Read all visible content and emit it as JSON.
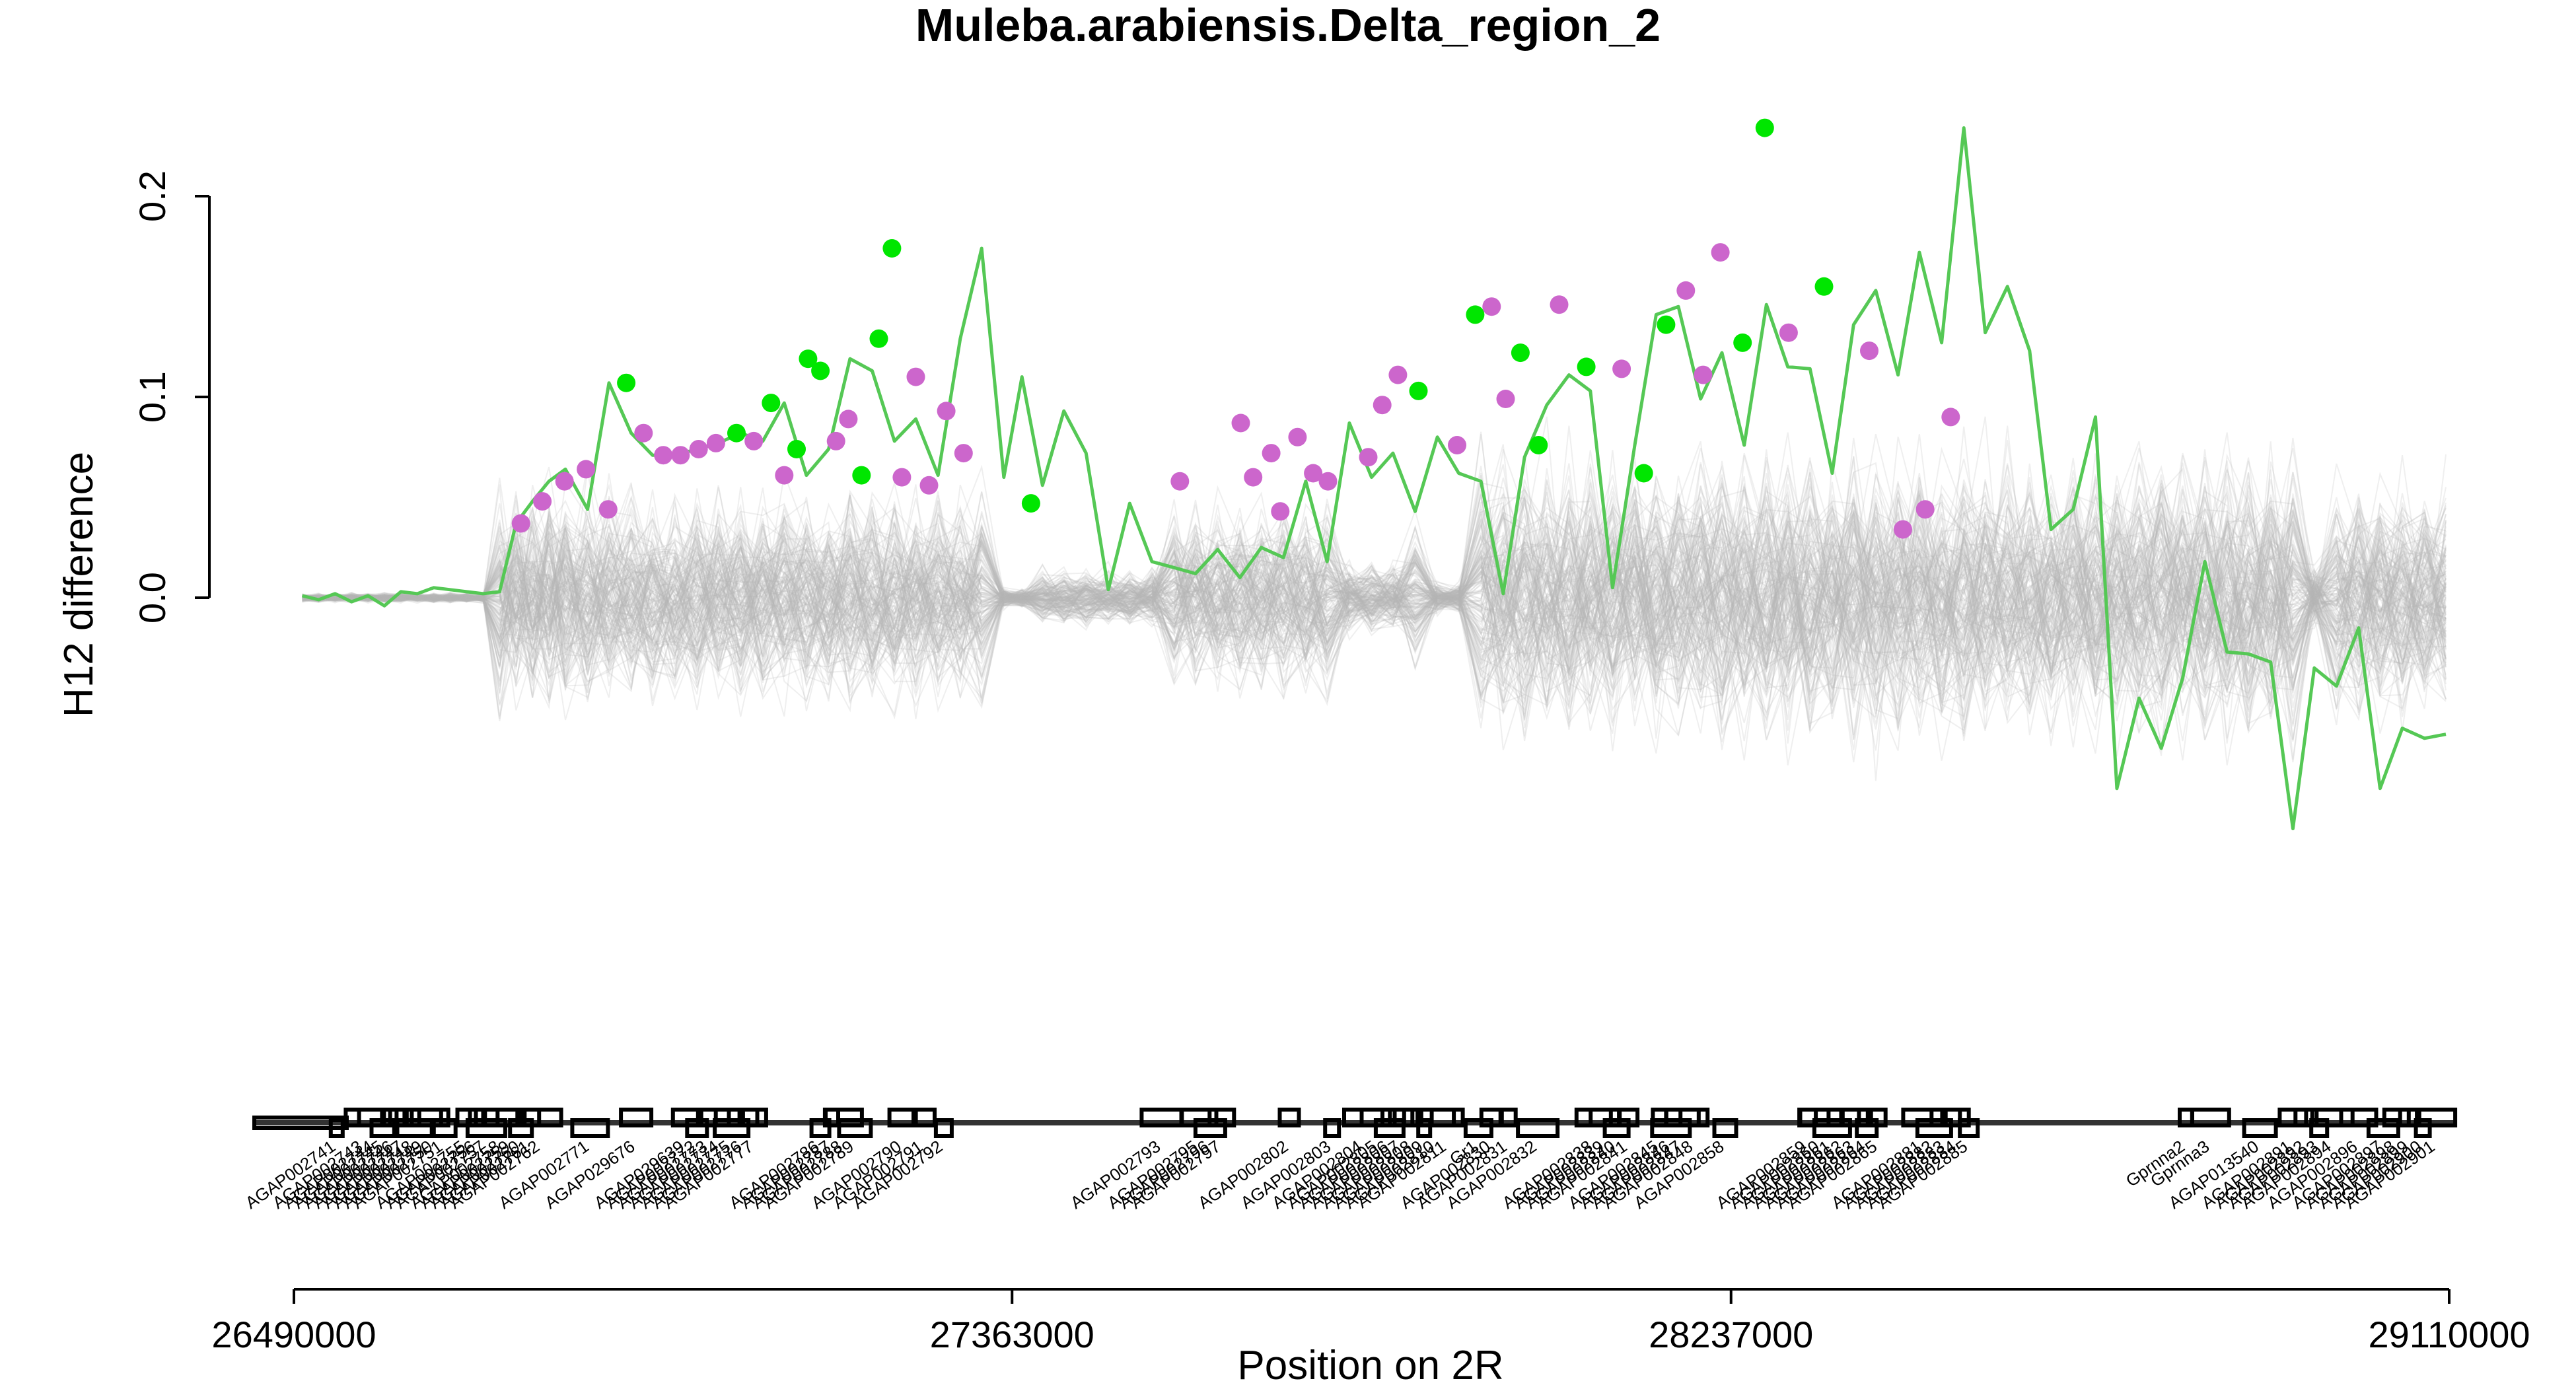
{
  "chart_data": {
    "type": "line",
    "title": "Muleba.arabiensis.Delta_region_2",
    "xlabel": "Position on 2R",
    "ylabel": "H12 difference",
    "xlim": [
      26490000,
      29110000
    ],
    "ylim": [
      -0.2,
      0.24
    ],
    "x_ticks": [
      "26490000",
      "27363000",
      "28237000",
      "29110000"
    ],
    "y_ticks": [
      "0.0",
      "0.1",
      "0.2"
    ],
    "grid": false,
    "legend": "none",
    "colors": {
      "observed_line": "#55c855",
      "significant_point": "#00e600",
      "secondary_point": "#cc66cc",
      "permutations": "#b4b4b4",
      "genes": "#000000"
    },
    "series": [
      {
        "role": "observed",
        "x": [
          26500000,
          26520000,
          26540000,
          26560000,
          26580000,
          26600000,
          26620000,
          26640000,
          26660000,
          26680000,
          26700000,
          26720000,
          26740000,
          26760000,
          26780000,
          26800000,
          26820000,
          26847000,
          26873000,
          26900000,
          26926000,
          26953000,
          26980000,
          27006000,
          27033000,
          27060000,
          27086000,
          27113000,
          27140000,
          27166000,
          27193000,
          27220000,
          27246000,
          27273000,
          27300000,
          27326000,
          27353000,
          27375000,
          27400000,
          27426000,
          27453000,
          27480000,
          27506000,
          27533000,
          27560000,
          27586000,
          27613000,
          27640000,
          27666000,
          27693000,
          27720000,
          27746000,
          27773000,
          27800000,
          27826000,
          27853000,
          27880000,
          27906000,
          27933000,
          27960000,
          27986000,
          28013000,
          28040000,
          28066000,
          28093000,
          28120000,
          28146000,
          28173000,
          28200000,
          28226000,
          28253000,
          28280000,
          28306000,
          28333000,
          28360000,
          28386000,
          28413000,
          28440000,
          28466000,
          28493000,
          28520000,
          28546000,
          28573000,
          28600000,
          28626000,
          28653000,
          28680000,
          28706000,
          28733000,
          28760000,
          28786000,
          28813000,
          28840000,
          28866000,
          28893000,
          28920000,
          28946000,
          28973000,
          29000000,
          29026000,
          29053000,
          29080000,
          29106000
        ],
        "y": [
          0.001,
          -0.001,
          0.002,
          -0.002,
          0.001,
          -0.004,
          0.003,
          0.002,
          0.005,
          0.004,
          0.003,
          0.002,
          0.003,
          0.037,
          0.048,
          0.058,
          0.064,
          0.044,
          0.107,
          0.082,
          0.071,
          0.071,
          0.074,
          0.077,
          0.082,
          0.078,
          0.097,
          0.061,
          0.074,
          0.119,
          0.113,
          0.078,
          0.089,
          0.061,
          0.129,
          0.174,
          0.06,
          0.11,
          0.056,
          0.093,
          0.072,
          0.004,
          0.047,
          0.018,
          0.015,
          0.012,
          0.024,
          0.01,
          0.025,
          0.02,
          0.058,
          0.018,
          0.087,
          0.06,
          0.072,
          0.043,
          0.08,
          0.062,
          0.058,
          0.002,
          0.07,
          0.096,
          0.111,
          0.103,
          0.005,
          0.076,
          0.141,
          0.145,
          0.099,
          0.122,
          0.076,
          0.146,
          0.115,
          0.114,
          0.062,
          0.136,
          0.153,
          0.111,
          0.172,
          0.127,
          0.234,
          0.132,
          0.155,
          0.123,
          0.034,
          0.044,
          0.09,
          -0.095,
          -0.05,
          -0.075,
          -0.04,
          0.018,
          -0.027,
          -0.028,
          -0.032,
          -0.115,
          -0.035,
          -0.044,
          -0.015,
          -0.095,
          -0.065,
          -0.07,
          -0.068
        ],
        "points": [
          {
            "x": 26766000,
            "y": 0.037,
            "class": "secondary"
          },
          {
            "x": 26792000,
            "y": 0.048,
            "class": "secondary"
          },
          {
            "x": 26819000,
            "y": 0.058,
            "class": "secondary"
          },
          {
            "x": 26845000,
            "y": 0.064,
            "class": "secondary"
          },
          {
            "x": 26872000,
            "y": 0.044,
            "class": "secondary"
          },
          {
            "x": 26894000,
            "y": 0.107,
            "class": "significant"
          },
          {
            "x": 26915000,
            "y": 0.082,
            "class": "secondary"
          },
          {
            "x": 26939000,
            "y": 0.071,
            "class": "secondary"
          },
          {
            "x": 26960000,
            "y": 0.071,
            "class": "secondary"
          },
          {
            "x": 26982000,
            "y": 0.074,
            "class": "secondary"
          },
          {
            "x": 27003000,
            "y": 0.077,
            "class": "secondary"
          },
          {
            "x": 27028000,
            "y": 0.082,
            "class": "significant"
          },
          {
            "x": 27049000,
            "y": 0.078,
            "class": "secondary"
          },
          {
            "x": 27070000,
            "y": 0.097,
            "class": "significant"
          },
          {
            "x": 27086000,
            "y": 0.061,
            "class": "secondary"
          },
          {
            "x": 27101000,
            "y": 0.074,
            "class": "significant"
          },
          {
            "x": 27115000,
            "y": 0.119,
            "class": "significant"
          },
          {
            "x": 27130000,
            "y": 0.113,
            "class": "significant"
          },
          {
            "x": 27149000,
            "y": 0.078,
            "class": "secondary"
          },
          {
            "x": 27164000,
            "y": 0.089,
            "class": "secondary"
          },
          {
            "x": 27180000,
            "y": 0.061,
            "class": "significant"
          },
          {
            "x": 27201000,
            "y": 0.129,
            "class": "significant"
          },
          {
            "x": 27217000,
            "y": 0.174,
            "class": "significant"
          },
          {
            "x": 27229000,
            "y": 0.06,
            "class": "secondary"
          },
          {
            "x": 27246000,
            "y": 0.11,
            "class": "secondary"
          },
          {
            "x": 27262000,
            "y": 0.056,
            "class": "secondary"
          },
          {
            "x": 27283000,
            "y": 0.093,
            "class": "secondary"
          },
          {
            "x": 27304000,
            "y": 0.072,
            "class": "secondary"
          },
          {
            "x": 27386000,
            "y": 0.047,
            "class": "significant"
          },
          {
            "x": 27567000,
            "y": 0.058,
            "class": "secondary"
          },
          {
            "x": 27641000,
            "y": 0.087,
            "class": "secondary"
          },
          {
            "x": 27656000,
            "y": 0.06,
            "class": "secondary"
          },
          {
            "x": 27678000,
            "y": 0.072,
            "class": "secondary"
          },
          {
            "x": 27689000,
            "y": 0.043,
            "class": "secondary"
          },
          {
            "x": 27710000,
            "y": 0.08,
            "class": "secondary"
          },
          {
            "x": 27729000,
            "y": 0.062,
            "class": "secondary"
          },
          {
            "x": 27747000,
            "y": 0.058,
            "class": "secondary"
          },
          {
            "x": 27796000,
            "y": 0.07,
            "class": "secondary"
          },
          {
            "x": 27813000,
            "y": 0.096,
            "class": "secondary"
          },
          {
            "x": 27832000,
            "y": 0.111,
            "class": "secondary"
          },
          {
            "x": 27857000,
            "y": 0.103,
            "class": "significant"
          },
          {
            "x": 27904000,
            "y": 0.076,
            "class": "secondary"
          },
          {
            "x": 27926000,
            "y": 0.141,
            "class": "significant"
          },
          {
            "x": 27946000,
            "y": 0.145,
            "class": "secondary"
          },
          {
            "x": 27963000,
            "y": 0.099,
            "class": "secondary"
          },
          {
            "x": 27981000,
            "y": 0.122,
            "class": "significant"
          },
          {
            "x": 28003000,
            "y": 0.076,
            "class": "significant"
          },
          {
            "x": 28028000,
            "y": 0.146,
            "class": "secondary"
          },
          {
            "x": 28061000,
            "y": 0.115,
            "class": "significant"
          },
          {
            "x": 28104000,
            "y": 0.114,
            "class": "secondary"
          },
          {
            "x": 28131000,
            "y": 0.062,
            "class": "significant"
          },
          {
            "x": 28158000,
            "y": 0.136,
            "class": "significant"
          },
          {
            "x": 28182000,
            "y": 0.153,
            "class": "secondary"
          },
          {
            "x": 28203000,
            "y": 0.111,
            "class": "secondary"
          },
          {
            "x": 28224000,
            "y": 0.172,
            "class": "secondary"
          },
          {
            "x": 28251000,
            "y": 0.127,
            "class": "significant"
          },
          {
            "x": 28278000,
            "y": 0.234,
            "class": "significant"
          },
          {
            "x": 28307000,
            "y": 0.132,
            "class": "secondary"
          },
          {
            "x": 28350000,
            "y": 0.155,
            "class": "significant"
          },
          {
            "x": 28405000,
            "y": 0.123,
            "class": "secondary"
          },
          {
            "x": 28446000,
            "y": 0.034,
            "class": "secondary"
          },
          {
            "x": 28473000,
            "y": 0.044,
            "class": "secondary"
          },
          {
            "x": 28504000,
            "y": 0.09,
            "class": "secondary"
          }
        ]
      }
    ],
    "genes": [
      {
        "name": "AGAP002741",
        "pos": 26542000
      },
      {
        "name": "AGAP002743",
        "pos": 26575000
      },
      {
        "name": "AGAP002744",
        "pos": 26588000
      },
      {
        "name": "AGAP002745",
        "pos": 26600000
      },
      {
        "name": "AGAP002746",
        "pos": 26612000
      },
      {
        "name": "AGAP002747",
        "pos": 26624000
      },
      {
        "name": "AGAP002748",
        "pos": 26636000
      },
      {
        "name": "AGAP002749",
        "pos": 26648000
      },
      {
        "name": "AGAP002750",
        "pos": 26660000
      },
      {
        "name": "AGAP002751",
        "pos": 26672000
      },
      {
        "name": "AGAP002755",
        "pos": 26700000
      },
      {
        "name": "AGAP002756",
        "pos": 26712000
      },
      {
        "name": "AGAP002757",
        "pos": 26724000
      },
      {
        "name": "AGAP002758",
        "pos": 26742000
      },
      {
        "name": "AGAP002759",
        "pos": 26754000
      },
      {
        "name": "AGAP002760",
        "pos": 26766000
      },
      {
        "name": "AGAP002761",
        "pos": 26778000
      },
      {
        "name": "AGAP002762",
        "pos": 26790000
      },
      {
        "name": "AGAP002771",
        "pos": 26850000
      },
      {
        "name": "AGAP029676",
        "pos": 26906000
      },
      {
        "name": "AGAP029639",
        "pos": 26966000
      },
      {
        "name": "AGAP002772",
        "pos": 26980000
      },
      {
        "name": "AGAP002773",
        "pos": 26994000
      },
      {
        "name": "AGAP002774",
        "pos": 27008000
      },
      {
        "name": "AGAP002775",
        "pos": 27022000
      },
      {
        "name": "AGAP002776",
        "pos": 27036000
      },
      {
        "name": "AGAP002777",
        "pos": 27050000
      },
      {
        "name": "AGAP002786",
        "pos": 27130000
      },
      {
        "name": "AGAP002787",
        "pos": 27144000
      },
      {
        "name": "AGAP002788",
        "pos": 27158000
      },
      {
        "name": "AGAP002789",
        "pos": 27172000
      },
      {
        "name": "AGAP002790",
        "pos": 27230000
      },
      {
        "name": "AGAP002791",
        "pos": 27256000
      },
      {
        "name": "AGAP002792",
        "pos": 27280000
      },
      {
        "name": "AGAP002793",
        "pos": 27545000
      },
      {
        "name": "AGAP002795",
        "pos": 27590000
      },
      {
        "name": "AGAP002796",
        "pos": 27604000
      },
      {
        "name": "AGAP002797",
        "pos": 27618000
      },
      {
        "name": "AGAP002802",
        "pos": 27700000
      },
      {
        "name": "AGAP002803",
        "pos": 27752000
      },
      {
        "name": "AGAP002804",
        "pos": 27790000
      },
      {
        "name": "AGAP002805",
        "pos": 27808000
      },
      {
        "name": "AGAP002806",
        "pos": 27822000
      },
      {
        "name": "AGAP002807",
        "pos": 27836000
      },
      {
        "name": "AGAP002808",
        "pos": 27850000
      },
      {
        "name": "AGAP002809",
        "pos": 27864000
      },
      {
        "name": "AGAP002810",
        "pos": 27878000
      },
      {
        "name": "AGAP002811",
        "pos": 27892000
      },
      {
        "name": "Gr1",
        "pos": 27930000
      },
      {
        "name": "AGAP002830",
        "pos": 27946000
      },
      {
        "name": "AGAP002831",
        "pos": 27966000
      },
      {
        "name": "AGAP002832",
        "pos": 28002000
      },
      {
        "name": "AGAP002838",
        "pos": 28070000
      },
      {
        "name": "AGAP002839",
        "pos": 28084000
      },
      {
        "name": "AGAP002840",
        "pos": 28098000
      },
      {
        "name": "AGAP002841",
        "pos": 28112000
      },
      {
        "name": "AGAP002845",
        "pos": 28150000
      },
      {
        "name": "AGAP002846",
        "pos": 28164000
      },
      {
        "name": "AGAP002847",
        "pos": 28178000
      },
      {
        "name": "AGAP002848",
        "pos": 28192000
      },
      {
        "name": "AGAP002858",
        "pos": 28230000
      },
      {
        "name": "AGAP002859",
        "pos": 28330000
      },
      {
        "name": "AGAP002860",
        "pos": 28346000
      },
      {
        "name": "AGAP002861",
        "pos": 28360000
      },
      {
        "name": "AGAP002862",
        "pos": 28374000
      },
      {
        "name": "AGAP002863",
        "pos": 28388000
      },
      {
        "name": "AGAP002864",
        "pos": 28402000
      },
      {
        "name": "AGAP002865",
        "pos": 28416000
      },
      {
        "name": "AGAP002881",
        "pos": 28470000
      },
      {
        "name": "AGAP002882",
        "pos": 28484000
      },
      {
        "name": "AGAP002883",
        "pos": 28498000
      },
      {
        "name": "AGAP002884",
        "pos": 28512000
      },
      {
        "name": "AGAP002885",
        "pos": 28526000
      },
      {
        "name": "Gprnna2",
        "pos": 28790000
      },
      {
        "name": "Gprnna3",
        "pos": 28820000
      },
      {
        "name": "AGAP013540",
        "pos": 28880000
      },
      {
        "name": "AGAP002891",
        "pos": 28920000
      },
      {
        "name": "AGAP002892",
        "pos": 28936000
      },
      {
        "name": "AGAP002893",
        "pos": 28952000
      },
      {
        "name": "AGAP002894",
        "pos": 28968000
      },
      {
        "name": "AGAP002896",
        "pos": 29000000
      },
      {
        "name": "AGAP002897",
        "pos": 29030000
      },
      {
        "name": "AGAP002898",
        "pos": 29046000
      },
      {
        "name": "AGAP002899",
        "pos": 29062000
      },
      {
        "name": "AGAP002900",
        "pos": 29078000
      },
      {
        "name": "AGAP002901",
        "pos": 29094000
      }
    ]
  }
}
